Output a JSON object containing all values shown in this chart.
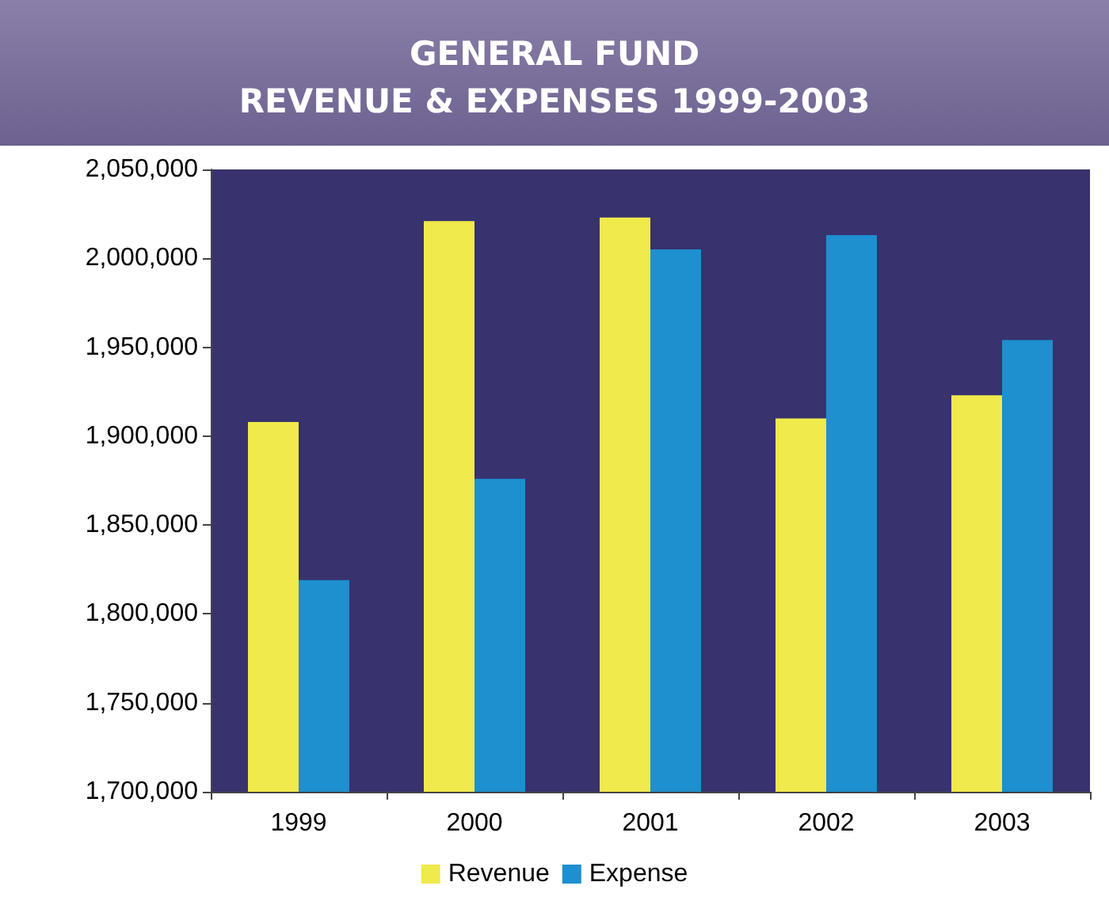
{
  "chart_data": {
    "type": "bar",
    "title": "GENERAL FUND\nREVENUE & EXPENSES 1999-2003",
    "categories": [
      "1999",
      "2000",
      "2001",
      "2002",
      "2003"
    ],
    "series": [
      {
        "name": "Revenue",
        "color": "#f0ea4c",
        "values": [
          1908000,
          2021000,
          2023000,
          1910000,
          1923000
        ]
      },
      {
        "name": "Expense",
        "color": "#1e8fcf",
        "values": [
          1819000,
          1876000,
          2005000,
          2013000,
          1954000
        ]
      }
    ],
    "ylim": [
      1700000,
      2050000
    ],
    "yticks": [
      {
        "value": 1700000,
        "label": "1,700,000"
      },
      {
        "value": 1750000,
        "label": "1,750,000"
      },
      {
        "value": 1800000,
        "label": "1,800,000"
      },
      {
        "value": 1850000,
        "label": "1,850,000"
      },
      {
        "value": 1900000,
        "label": "1,900,000"
      },
      {
        "value": 1950000,
        "label": "1,950,000"
      },
      {
        "value": 2000000,
        "label": "2,000,000"
      },
      {
        "value": 2050000,
        "label": "2,050,000"
      }
    ],
    "grid": false,
    "legend": "bottom"
  }
}
